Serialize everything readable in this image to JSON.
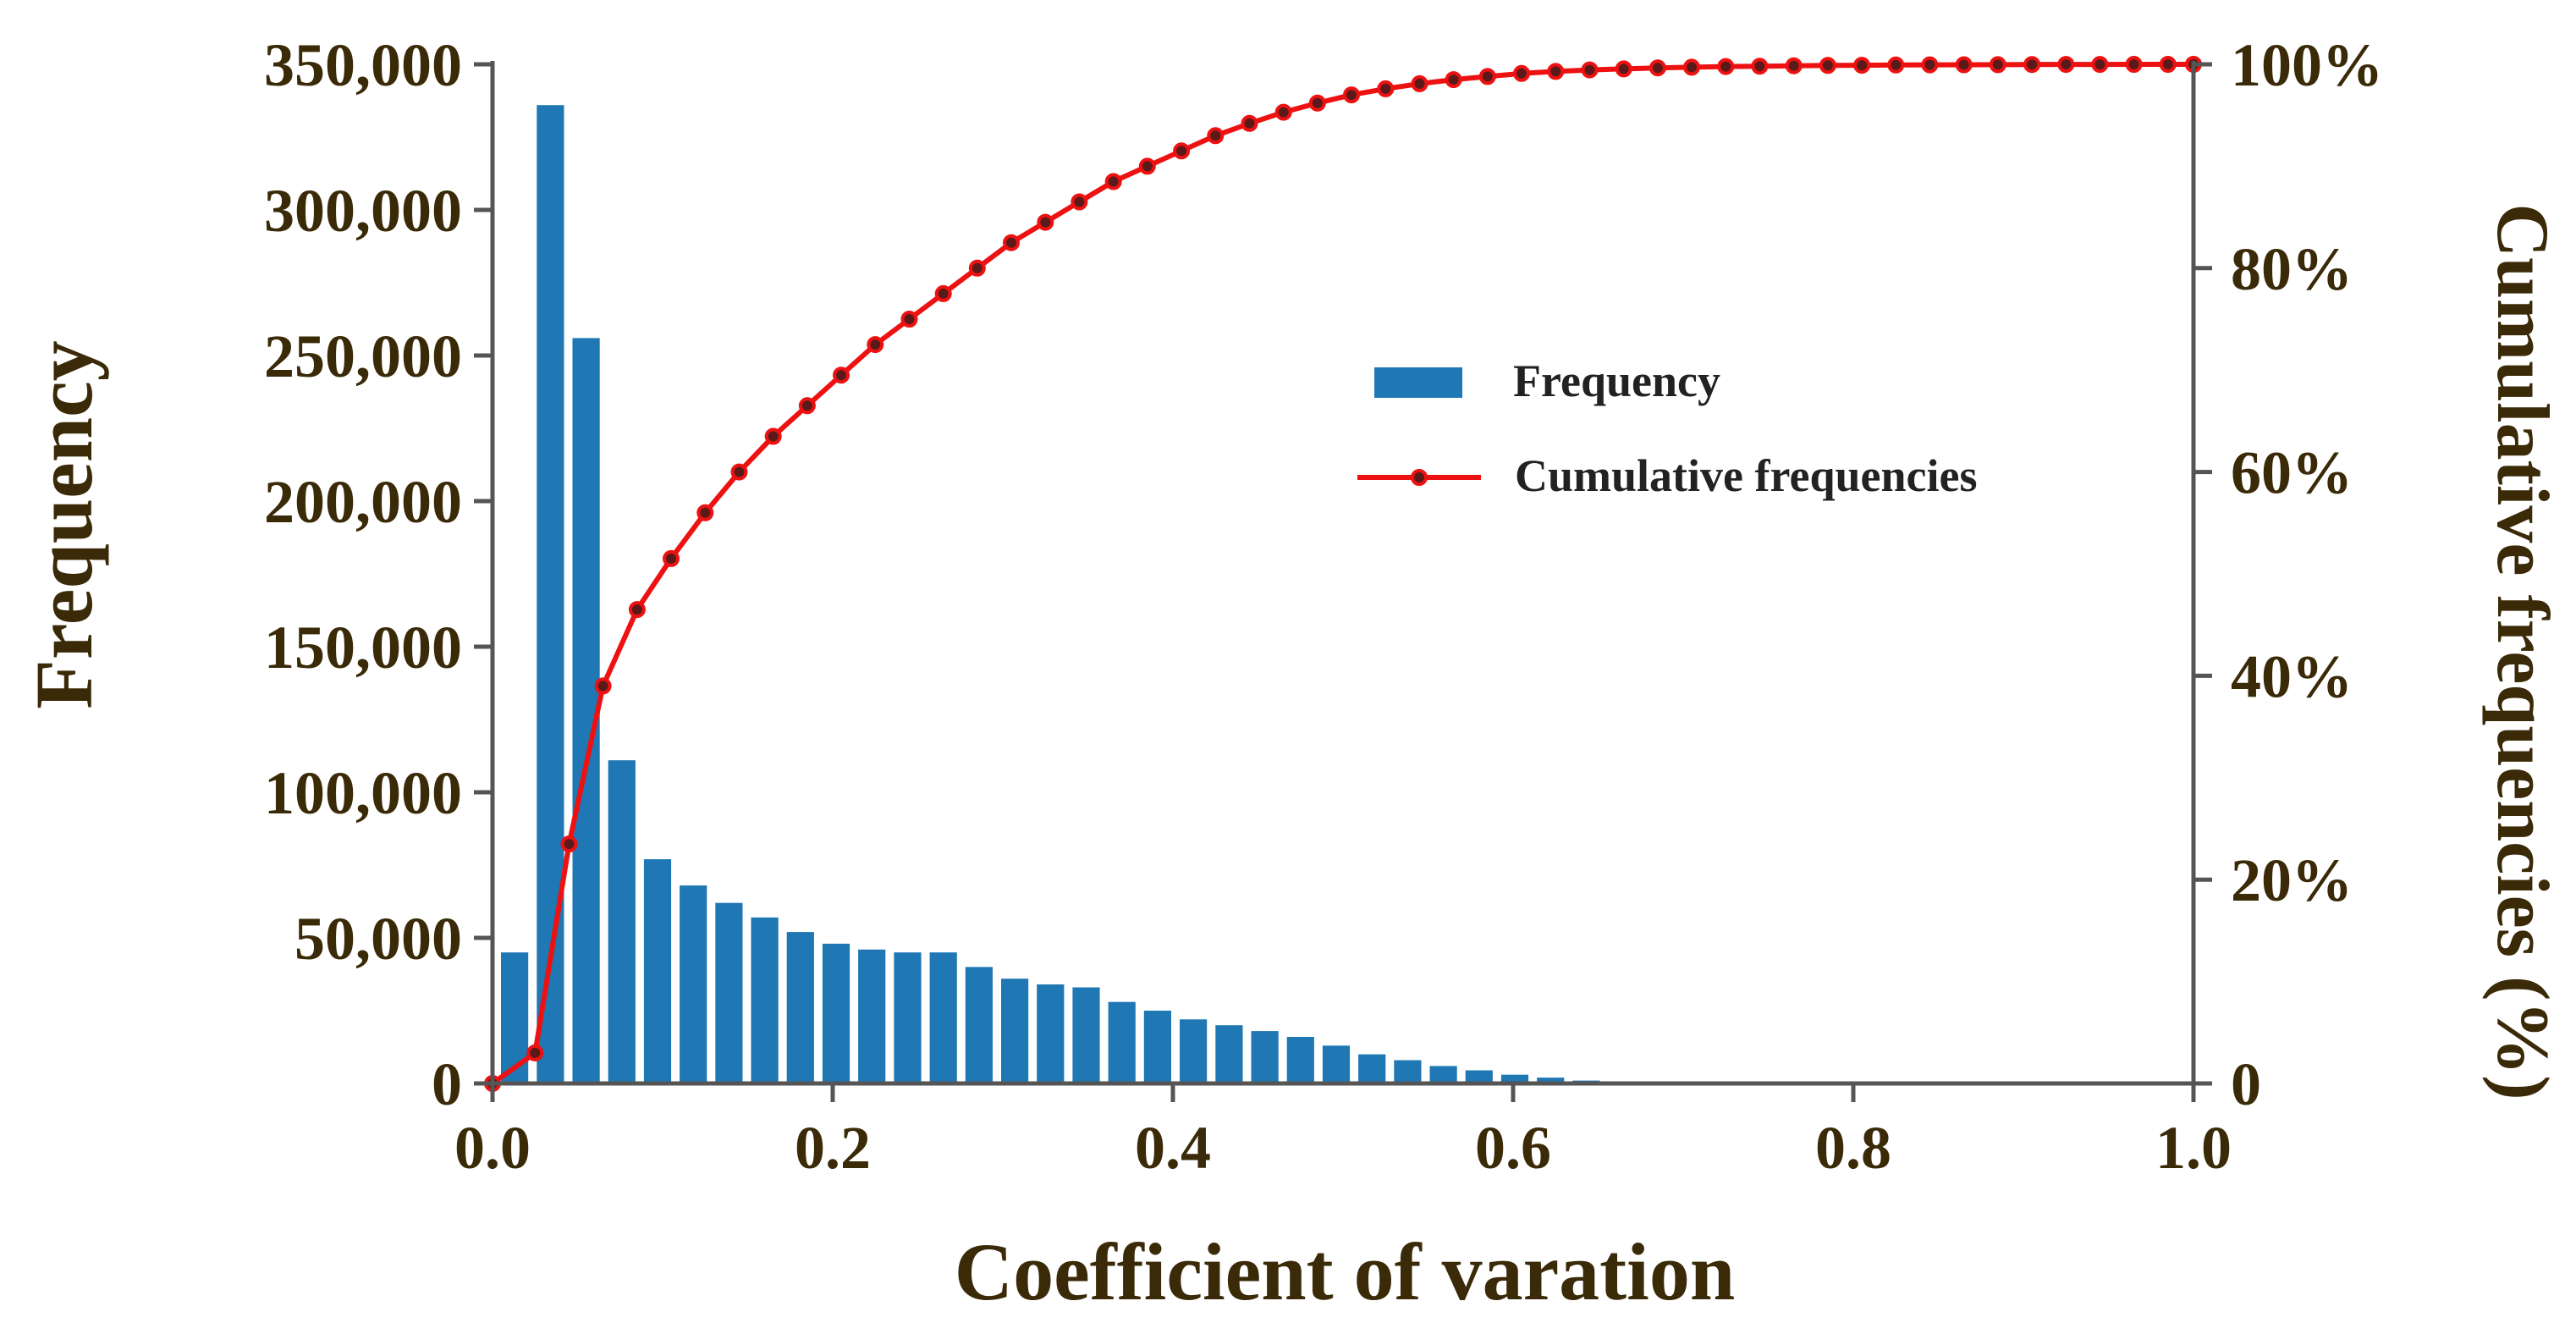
{
  "colors": {
    "bar": "#1f77b4",
    "line": "#ee1111",
    "marker_face": "#5a1a1a",
    "axis": "#555555",
    "text": "#3a2a08"
  },
  "chart_data": {
    "type": "bar",
    "title": "",
    "xlabel": "Coefficient of varation",
    "ylabel": "Frequency",
    "y2label": "Cumulative frequencies (%)",
    "xlim": [
      0.0,
      1.0
    ],
    "ylim": [
      0,
      350000
    ],
    "y2lim": [
      0,
      100
    ],
    "x_ticks": [
      0.0,
      0.2,
      0.4,
      0.6,
      0.8,
      1.0
    ],
    "x_tick_labels": [
      "0.0",
      "0.2",
      "0.4",
      "0.6",
      "0.8",
      "1.0"
    ],
    "y_ticks": [
      0,
      50000,
      100000,
      150000,
      200000,
      250000,
      300000,
      350000
    ],
    "y_tick_labels": [
      "0",
      "50,000",
      "100,000",
      "150,000",
      "200,000",
      "250,000",
      "300,000",
      "350,000"
    ],
    "y2_ticks": [
      0,
      20,
      40,
      60,
      80,
      100
    ],
    "y2_tick_labels": [
      "0",
      "20%",
      "40%",
      "60%",
      "80%",
      "100%"
    ],
    "legend": {
      "position": "center-right",
      "entries": [
        "Frequency",
        "Cumulative frequencies"
      ]
    },
    "series": [
      {
        "name": "Frequency",
        "type": "bar",
        "axis": "left",
        "bar_width": 0.016,
        "x": [
          0.013,
          0.034,
          0.055,
          0.076,
          0.097,
          0.118,
          0.139,
          0.16,
          0.181,
          0.202,
          0.223,
          0.244,
          0.265,
          0.286,
          0.307,
          0.328,
          0.349,
          0.37,
          0.391,
          0.412,
          0.433,
          0.454,
          0.475,
          0.496,
          0.517,
          0.538,
          0.559,
          0.58,
          0.601,
          0.622,
          0.643,
          0.664
        ],
        "values": [
          45000,
          336000,
          256000,
          111000,
          77000,
          68000,
          62000,
          57000,
          52000,
          48000,
          46000,
          45000,
          45000,
          40000,
          36000,
          34000,
          33000,
          28000,
          25000,
          22000,
          20000,
          18000,
          16000,
          13000,
          10000,
          8000,
          6000,
          4500,
          3000,
          2000,
          1000,
          500
        ]
      },
      {
        "name": "Cumulative frequencies",
        "type": "line",
        "axis": "right",
        "x": [
          0.0,
          0.025,
          0.045,
          0.065,
          0.085,
          0.105,
          0.125,
          0.145,
          0.165,
          0.185,
          0.205,
          0.225,
          0.245,
          0.265,
          0.285,
          0.305,
          0.325,
          0.345,
          0.365,
          0.385,
          0.405,
          0.425,
          0.445,
          0.465,
          0.485,
          0.505,
          0.525,
          0.545,
          0.565,
          0.585,
          0.605,
          0.625,
          0.645,
          0.665,
          0.685,
          0.705,
          0.725,
          0.745,
          0.765,
          0.785,
          0.805,
          0.825,
          0.845,
          0.865,
          0.885,
          0.905,
          0.925,
          0.945,
          0.965,
          0.985,
          1.0
        ],
        "values": [
          0,
          3,
          23.5,
          39,
          46.5,
          51.5,
          56,
          60,
          63.5,
          66.5,
          69.5,
          72.5,
          75,
          77.5,
          80,
          82.5,
          84.5,
          86.5,
          88.5,
          90,
          91.5,
          93,
          94.2,
          95.3,
          96.2,
          97,
          97.6,
          98.1,
          98.5,
          98.8,
          99.1,
          99.3,
          99.45,
          99.55,
          99.65,
          99.72,
          99.78,
          99.82,
          99.86,
          99.89,
          99.91,
          99.93,
          99.95,
          99.96,
          99.97,
          99.98,
          99.99,
          99.99,
          100,
          100,
          100
        ]
      }
    ]
  }
}
